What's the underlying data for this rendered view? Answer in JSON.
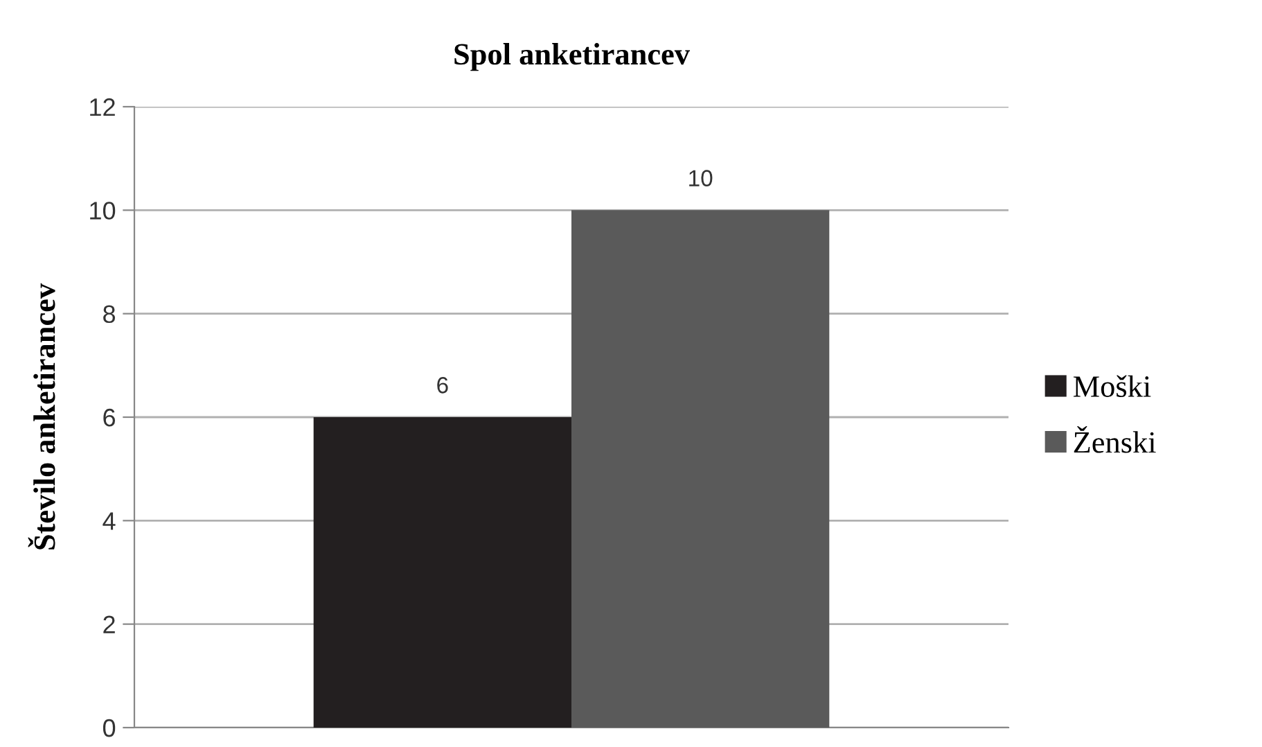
{
  "chart_data": {
    "type": "bar",
    "title": "Spol anketirancev",
    "ylabel": "Število anketirancev",
    "categories": [
      null
    ],
    "series": [
      {
        "name": "Moški",
        "color": "#231f20",
        "values": [
          6
        ]
      },
      {
        "name": "Ženski",
        "color": "#5a5a5a",
        "values": [
          10
        ]
      }
    ],
    "ylim": [
      0,
      12
    ],
    "yticks": [
      0,
      2,
      4,
      6,
      8,
      10,
      12
    ],
    "grid": "y",
    "legend": "right",
    "data_labels": true
  }
}
